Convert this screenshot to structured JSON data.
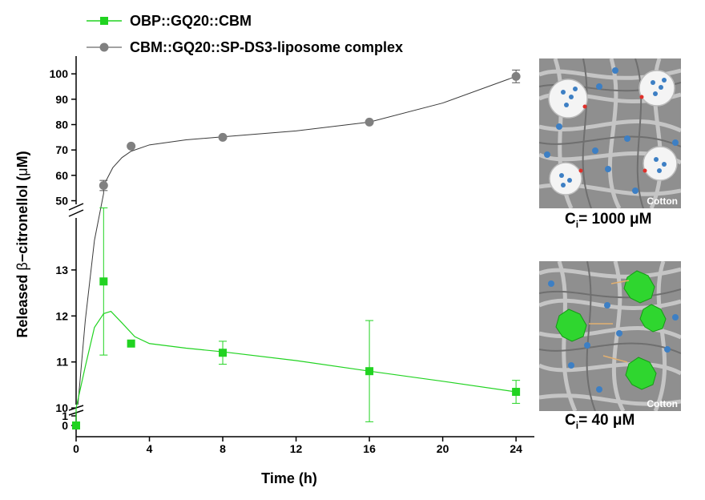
{
  "chart_data": {
    "type": "scatter",
    "xlabel": "Time (h)",
    "ylabel_prefix": "Released ",
    "ylabel_greek": "β",
    "ylabel_suffix": "−citronellol (",
    "ylabel_unit_greek": "μ",
    "ylabel_unit": "M)",
    "x_ticks": [
      "0",
      "4",
      "8",
      "12",
      "16",
      "20",
      "24"
    ],
    "xlim": [
      0,
      25
    ],
    "y_axis_break": true,
    "y_upper_ticks": [
      "50",
      "60",
      "70",
      "80",
      "90",
      "100"
    ],
    "y_upper_range": [
      47,
      107
    ],
    "y_lower_ticks": [
      "10",
      "11",
      "12",
      "13"
    ],
    "y_lower_range": [
      9.95,
      14.2
    ],
    "y_bottom_ticks": [
      "0",
      "1"
    ],
    "legend_position": "top-left",
    "series": [
      {
        "name": "OBP::GQ20::CBM",
        "color": "#21d321",
        "marker": "square",
        "x": [
          0,
          1.5,
          3,
          8,
          16,
          24
        ],
        "y": [
          0,
          12.75,
          11.4,
          11.2,
          10.8,
          10.35
        ],
        "err": [
          0,
          1.6,
          0,
          0.25,
          1.1,
          0.25
        ],
        "fit": [
          [
            0,
            10.0
          ],
          [
            0.5,
            10.9
          ],
          [
            1.0,
            11.75
          ],
          [
            1.5,
            12.05
          ],
          [
            1.9,
            12.1
          ],
          [
            2.5,
            11.85
          ],
          [
            3.2,
            11.55
          ],
          [
            4,
            11.4
          ],
          [
            6,
            11.3
          ],
          [
            8,
            11.22
          ],
          [
            12,
            11.03
          ],
          [
            16,
            10.8
          ],
          [
            20,
            10.58
          ],
          [
            24,
            10.35
          ]
        ]
      },
      {
        "name": "CBM::GQ20::SP-DS3-liposome complex",
        "color": "#808080",
        "marker": "circle",
        "x": [
          1.5,
          3,
          8,
          16,
          24
        ],
        "y": [
          56,
          71.5,
          75,
          81,
          99
        ],
        "err": [
          2,
          0,
          0,
          0,
          2.5
        ],
        "fit": [
          [
            1.5,
            56
          ],
          [
            2,
            63
          ],
          [
            2.5,
            67
          ],
          [
            3,
            69.5
          ],
          [
            4,
            72
          ],
          [
            6,
            74
          ],
          [
            8,
            75.2
          ],
          [
            12,
            77.5
          ],
          [
            16,
            81
          ],
          [
            20,
            88.5
          ],
          [
            24,
            99
          ]
        ]
      }
    ]
  },
  "images": [
    {
      "label": "Cotton",
      "caption_main": "C",
      "caption_sub": "i",
      "caption_rest": "= 1000 μM"
    },
    {
      "label": "Cotton",
      "caption_main": "C",
      "caption_sub": "i",
      "caption_rest": "= 40 μM"
    }
  ]
}
